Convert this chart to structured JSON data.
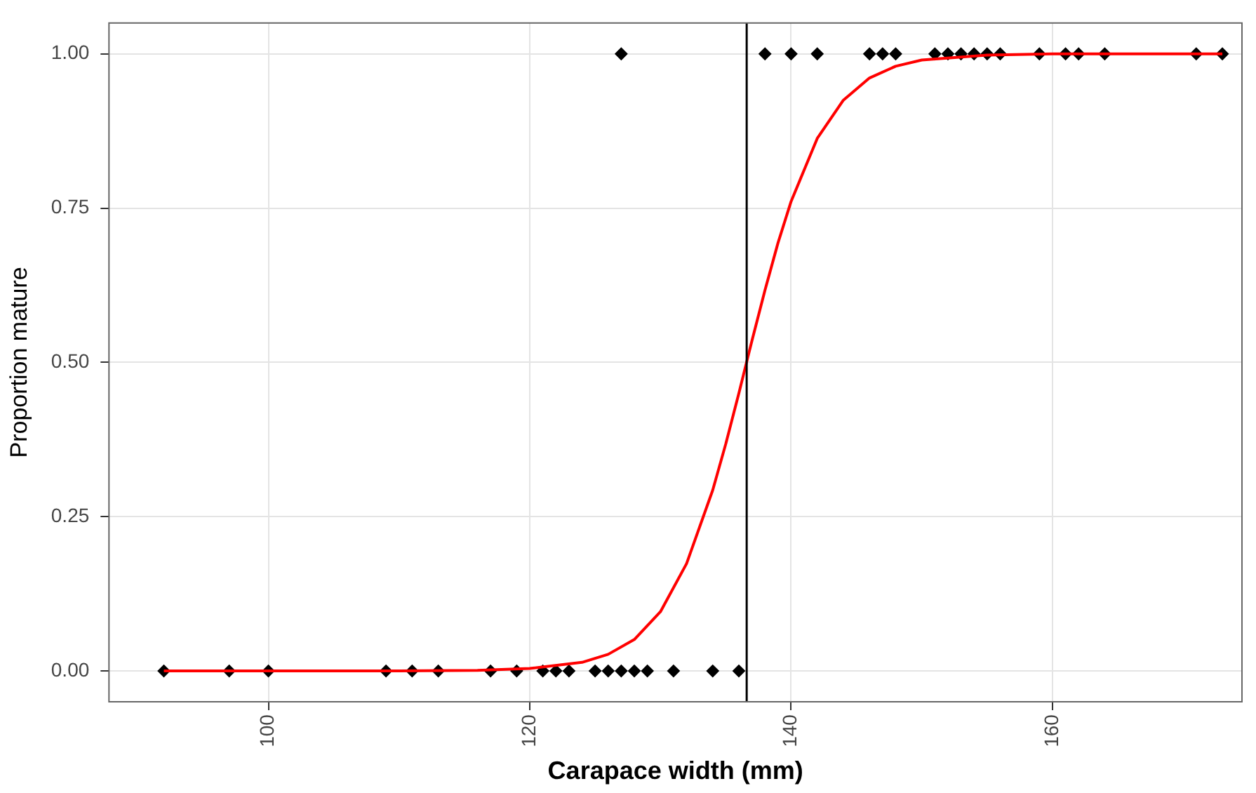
{
  "chart_data": {
    "type": "scatter",
    "xlabel": "Carapace width (mm)",
    "ylabel": "Proportion mature",
    "xlim": [
      87.8,
      174.5
    ],
    "xticks": [
      100,
      120,
      140,
      160
    ],
    "ylim": [
      -0.05,
      1.05
    ],
    "yticks": [
      {
        "value": 0,
        "label": "0.00"
      },
      {
        "value": 0.25,
        "label": "0.25"
      },
      {
        "value": 0.5,
        "label": "0.50"
      },
      {
        "value": 0.75,
        "label": "0.75"
      },
      {
        "value": 1,
        "label": "1.00"
      }
    ],
    "grid": true,
    "legend": false,
    "marker": "diamond",
    "series": [
      {
        "color": "#000000",
        "x": [
          92,
          97,
          100,
          109,
          111,
          113,
          117,
          119,
          121,
          122,
          123,
          125,
          126,
          127,
          128,
          129,
          131,
          134,
          136
        ],
        "values": [
          0,
          0,
          0,
          0,
          0,
          0,
          0,
          0,
          0,
          0,
          0,
          0,
          0,
          0,
          0,
          0,
          0,
          0,
          0
        ]
      },
      {
        "color": "#000000",
        "x": [
          127,
          138,
          140,
          142,
          146,
          147,
          148,
          151,
          152,
          153,
          154,
          155,
          156,
          159,
          161,
          162,
          164,
          171,
          173
        ],
        "values": [
          1,
          1,
          1,
          1,
          1,
          1,
          1,
          1,
          1,
          1,
          1,
          1,
          1,
          1,
          1,
          1,
          1,
          1,
          1
        ]
      },
      {
        "type": "line",
        "color": "#ff0000",
        "marker": "none",
        "x": [
          92,
          110,
          116,
          120,
          124,
          126,
          128,
          130,
          132,
          134,
          135,
          136,
          137,
          138,
          139,
          140,
          142,
          144,
          146,
          148,
          150,
          155,
          160,
          173
        ],
        "values": [
          0,
          0,
          0.001,
          0.004,
          0.014,
          0.027,
          0.051,
          0.096,
          0.174,
          0.293,
          0.368,
          0.45,
          0.535,
          0.617,
          0.694,
          0.761,
          0.863,
          0.925,
          0.961,
          0.98,
          0.99,
          0.998,
          1,
          1
        ]
      }
    ],
    "ref_lines": [
      {
        "axis": "x",
        "value": 136.6,
        "color": "#000000"
      }
    ]
  }
}
